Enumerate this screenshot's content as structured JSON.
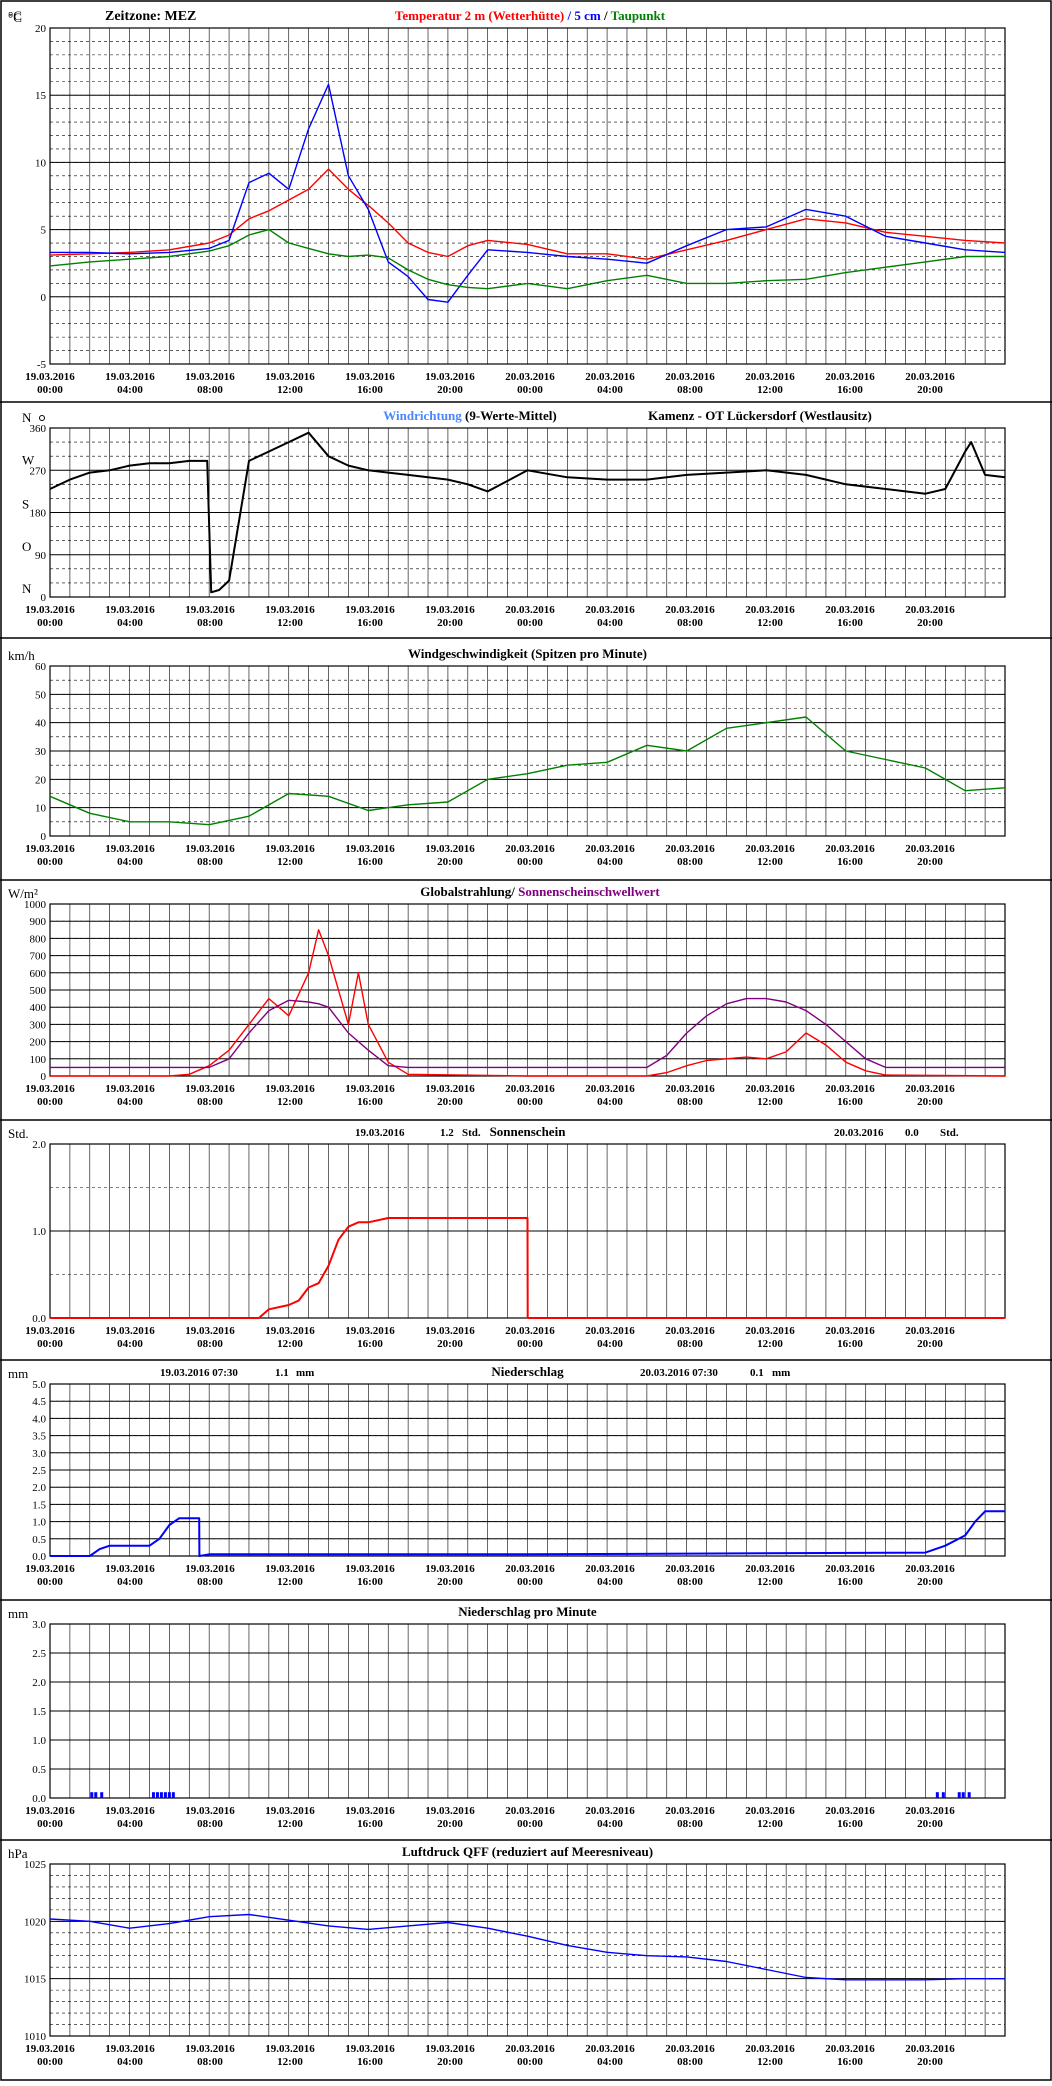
{
  "timezone_label": "Zeitzone: MEZ",
  "station": "Kamenz - OT Lückersdorf (Westlausitz)",
  "x_ticks": [
    [
      "19.03.2016",
      "00:00"
    ],
    [
      "19.03.2016",
      "04:00"
    ],
    [
      "19.03.2016",
      "08:00"
    ],
    [
      "19.03.2016",
      "12:00"
    ],
    [
      "19.03.2016",
      "16:00"
    ],
    [
      "19.03.2016",
      "20:00"
    ],
    [
      "20.03.2016",
      "00:00"
    ],
    [
      "20.03.2016",
      "04:00"
    ],
    [
      "20.03.2016",
      "08:00"
    ],
    [
      "20.03.2016",
      "12:00"
    ],
    [
      "20.03.2016",
      "16:00"
    ],
    [
      "20.03.2016",
      "20:00"
    ]
  ],
  "colors": {
    "red": "#ff0000",
    "blue": "#0000ff",
    "green": "#008000",
    "navy": "#000080",
    "purple": "#800080",
    "lightblue": "#4a86ff",
    "frame": "#000000"
  },
  "chart_data": [
    {
      "id": "temperature",
      "type": "line",
      "unit": "°C",
      "title_parts": [
        {
          "text": "Temperatur 2 m (Wetterhütte)",
          "color": "#ff0000"
        },
        {
          "text": "  /  ",
          "color": "#0000ff"
        },
        {
          "text": "5 cm",
          "color": "#0000ff"
        },
        {
          "text": " / ",
          "color": "#000000"
        },
        {
          "text": "Taupunkt",
          "color": "#008000"
        }
      ],
      "ylim": [
        -5,
        20
      ],
      "yticks": [
        -5,
        0,
        5,
        10,
        15,
        20
      ],
      "x_hours": [
        0,
        2,
        4,
        6,
        8,
        9,
        10,
        11,
        12,
        13,
        14,
        15,
        16,
        17,
        18,
        19,
        20,
        21,
        22,
        24,
        26,
        28,
        30,
        32,
        34,
        36,
        38,
        40,
        42,
        44,
        46,
        48
      ],
      "series": [
        {
          "name": "Temperatur 2 m (Wetterhütte)",
          "color": "#ff0000",
          "values": [
            3.1,
            3.2,
            3.3,
            3.5,
            4.0,
            4.6,
            5.8,
            6.4,
            7.2,
            8.0,
            9.5,
            8.0,
            6.8,
            5.5,
            4.0,
            3.3,
            3.0,
            3.8,
            4.2,
            3.9,
            3.2,
            3.2,
            2.8,
            3.5,
            4.2,
            5.0,
            5.8,
            5.5,
            4.8,
            4.5,
            4.2,
            4.0
          ]
        },
        {
          "name": "5 cm",
          "color": "#0000ff",
          "values": [
            3.3,
            3.3,
            3.2,
            3.3,
            3.6,
            4.2,
            8.5,
            9.2,
            8.0,
            12.5,
            15.8,
            9.0,
            6.5,
            2.6,
            1.5,
            -0.2,
            -0.4,
            1.6,
            3.5,
            3.3,
            3.0,
            2.8,
            2.5,
            3.8,
            5.0,
            5.2,
            6.5,
            6.0,
            4.5,
            4.0,
            3.5,
            3.3
          ]
        },
        {
          "name": "Taupunkt",
          "color": "#008000",
          "values": [
            2.3,
            2.6,
            2.8,
            3.0,
            3.4,
            3.8,
            4.6,
            5.0,
            4.0,
            3.6,
            3.2,
            3.0,
            3.1,
            2.9,
            2.0,
            1.3,
            0.9,
            0.7,
            0.6,
            1.0,
            0.6,
            1.2,
            1.6,
            1.0,
            1.0,
            1.2,
            1.3,
            1.8,
            2.2,
            2.6,
            3.0,
            3.0
          ]
        }
      ]
    },
    {
      "id": "wind_direction",
      "type": "line",
      "unit_labels": [
        "N",
        "W",
        "S",
        "O",
        "N"
      ],
      "ylim": [
        0,
        360
      ],
      "yticks": [
        0,
        90,
        180,
        270,
        360
      ],
      "title_parts": [
        {
          "text": "Windrichtung",
          "color": "#4a86ff"
        },
        {
          "text": " (9-Werte-Mittel)",
          "color": "#000000"
        }
      ],
      "x_hours": [
        0,
        1,
        2,
        3,
        4,
        5,
        6,
        7,
        7.9,
        8.1,
        8.5,
        9,
        10,
        11,
        12,
        13,
        14,
        15,
        16,
        17,
        18,
        19,
        20,
        21,
        22,
        24,
        26,
        28,
        30,
        32,
        34,
        36,
        38,
        40,
        42,
        44,
        45,
        46,
        46.3,
        47,
        48
      ],
      "series": [
        {
          "name": "Windrichtung",
          "color": "#4a86ff",
          "values": [
            230,
            250,
            265,
            270,
            280,
            285,
            285,
            290,
            290,
            10,
            15,
            35,
            290,
            310,
            330,
            350,
            300,
            280,
            270,
            265,
            260,
            255,
            250,
            240,
            225,
            270,
            255,
            250,
            250,
            260,
            265,
            270,
            260,
            240,
            230,
            220,
            230,
            310,
            330,
            260,
            255
          ]
        },
        {
          "name": "9-Werte-Mittel",
          "color": "#000000",
          "values": [
            230,
            250,
            265,
            270,
            280,
            285,
            285,
            290,
            290,
            10,
            15,
            35,
            290,
            310,
            330,
            350,
            300,
            280,
            270,
            265,
            260,
            255,
            250,
            240,
            225,
            270,
            255,
            250,
            250,
            260,
            265,
            270,
            260,
            240,
            230,
            220,
            230,
            310,
            330,
            260,
            255
          ]
        }
      ]
    },
    {
      "id": "wind_speed",
      "type": "line",
      "unit": "km/h",
      "title": "Windgeschwindigkeit (Spitzen pro Minute)",
      "ylim": [
        0,
        60
      ],
      "yticks": [
        0,
        10,
        20,
        30,
        40,
        50,
        60
      ],
      "x_hours": [
        0,
        2,
        4,
        6,
        8,
        10,
        12,
        14,
        16,
        18,
        20,
        22,
        24,
        26,
        28,
        30,
        32,
        34,
        36,
        38,
        40,
        42,
        44,
        46,
        48
      ],
      "series": [
        {
          "name": "Windgeschwindigkeit",
          "color": "#008000",
          "values": [
            14,
            8,
            5,
            5,
            4,
            7,
            15,
            14,
            9,
            11,
            12,
            20,
            22,
            25,
            26,
            32,
            30,
            38,
            40,
            42,
            30,
            27,
            24,
            16,
            17
          ]
        }
      ]
    },
    {
      "id": "radiation",
      "type": "line",
      "unit": "W/m²",
      "title_parts": [
        {
          "text": "Globalstrahlung",
          "color": "#000000"
        },
        {
          "text": "/ ",
          "color": "#000000"
        },
        {
          "text": "Sonnenscheinschwellwert",
          "color": "#800080"
        }
      ],
      "ylim": [
        0,
        1000
      ],
      "yticks": [
        0,
        100,
        200,
        300,
        400,
        500,
        600,
        700,
        800,
        900,
        1000
      ],
      "x_hours": [
        0,
        6,
        7,
        8,
        9,
        10,
        11,
        12,
        13,
        13.5,
        14,
        15,
        15.5,
        16,
        17,
        18,
        24,
        30,
        31,
        32,
        33,
        34,
        35,
        36,
        37,
        38,
        39,
        40,
        41,
        42,
        48
      ],
      "series": [
        {
          "name": "Globalstrahlung",
          "color": "#ff0000",
          "values": [
            0,
            0,
            10,
            60,
            150,
            300,
            450,
            350,
            600,
            850,
            700,
            300,
            600,
            300,
            80,
            10,
            0,
            0,
            20,
            60,
            90,
            100,
            110,
            100,
            140,
            250,
            180,
            80,
            30,
            5,
            0
          ]
        },
        {
          "name": "Sonnenscheinschwellwert",
          "color": "#800080",
          "values": [
            50,
            50,
            50,
            50,
            100,
            250,
            380,
            440,
            430,
            420,
            400,
            250,
            200,
            150,
            60,
            50,
            50,
            50,
            120,
            250,
            350,
            420,
            450,
            450,
            430,
            380,
            300,
            200,
            100,
            50,
            50
          ]
        }
      ]
    },
    {
      "id": "sunshine",
      "type": "line",
      "unit": "Std.",
      "title": "Sonnenschein",
      "annotations": [
        {
          "date": "19.03.2016",
          "value": "1.2",
          "unit": "Std."
        },
        {
          "date": "20.03.2016",
          "value": "0.0",
          "unit": "Std."
        }
      ],
      "ylim": [
        0,
        2
      ],
      "yticks": [
        0.0,
        1.0,
        2.0
      ],
      "x_hours": [
        0,
        10.5,
        11,
        12,
        12.5,
        13,
        13.5,
        14,
        14.5,
        15,
        15.5,
        16,
        17,
        18,
        20,
        24,
        24.01,
        48
      ],
      "series": [
        {
          "name": "Sonnenschein",
          "color": "#ff0000",
          "values": [
            0,
            0,
            0.1,
            0.15,
            0.2,
            0.35,
            0.4,
            0.6,
            0.9,
            1.05,
            1.1,
            1.1,
            1.15,
            1.15,
            1.15,
            1.15,
            0,
            0
          ]
        }
      ]
    },
    {
      "id": "precipitation",
      "type": "line",
      "unit": "mm",
      "title": "Niederschlag",
      "annotations": [
        {
          "date": "19.03.2016 07:30",
          "value": "1.1",
          "unit": "mm"
        },
        {
          "date": "20.03.2016 07:30",
          "value": "0.1",
          "unit": "mm"
        }
      ],
      "ylim": [
        0,
        5
      ],
      "yticks": [
        0,
        0.5,
        1,
        1.5,
        2,
        2.5,
        3,
        3.5,
        4,
        4.5,
        5
      ],
      "x_hours": [
        0,
        2,
        2.5,
        3,
        5,
        5.5,
        6,
        6.5,
        7,
        7.5,
        7.51,
        8,
        9,
        24,
        44,
        45,
        46,
        46.5,
        47,
        48
      ],
      "series": [
        {
          "name": "Niederschlag",
          "color": "#0000ff",
          "values": [
            0,
            0,
            0.2,
            0.3,
            0.3,
            0.5,
            0.9,
            1.1,
            1.1,
            1.1,
            0,
            0.05,
            0.05,
            0.05,
            0.1,
            0.3,
            0.6,
            1.0,
            1.3,
            1.3
          ]
        }
      ]
    },
    {
      "id": "precip_minute",
      "type": "bar",
      "unit": "mm",
      "title": "Niederschlag pro Minute",
      "ylim": [
        0,
        3
      ],
      "yticks": [
        0,
        0.5,
        1,
        1.5,
        2,
        2.5,
        3
      ],
      "x_hours": [
        2.1,
        2.3,
        2.6,
        5.2,
        5.4,
        5.6,
        5.8,
        6.0,
        6.2,
        44.6,
        44.9,
        45.7,
        45.9,
        46.2
      ],
      "series": [
        {
          "name": "Niederschlag pro Minute",
          "color": "#0000ff",
          "values": [
            0.1,
            0.1,
            0.1,
            0.1,
            0.1,
            0.1,
            0.1,
            0.1,
            0.1,
            0.1,
            0.1,
            0.1,
            0.1,
            0.1
          ]
        }
      ]
    },
    {
      "id": "pressure",
      "type": "line",
      "unit": "hPa",
      "title": "Luftdruck QFF (reduziert auf Meeresniveau)",
      "ylim": [
        1010,
        1025
      ],
      "yticks": [
        1010,
        1015,
        1020,
        1025
      ],
      "x_hours": [
        0,
        2,
        4,
        6,
        8,
        10,
        12,
        14,
        16,
        18,
        20,
        22,
        24,
        26,
        28,
        30,
        32,
        34,
        36,
        38,
        40,
        42,
        44,
        46,
        48
      ],
      "series": [
        {
          "name": "Luftdruck QFF",
          "color": "#0000ff",
          "values": [
            1020.2,
            1020.0,
            1019.4,
            1019.8,
            1020.4,
            1020.6,
            1020.1,
            1019.6,
            1019.3,
            1019.6,
            1019.9,
            1019.4,
            1018.7,
            1017.9,
            1017.3,
            1017.0,
            1016.9,
            1016.5,
            1015.8,
            1015.1,
            1014.9,
            1014.9,
            1014.9,
            1015.0,
            1015.0
          ]
        }
      ]
    }
  ]
}
